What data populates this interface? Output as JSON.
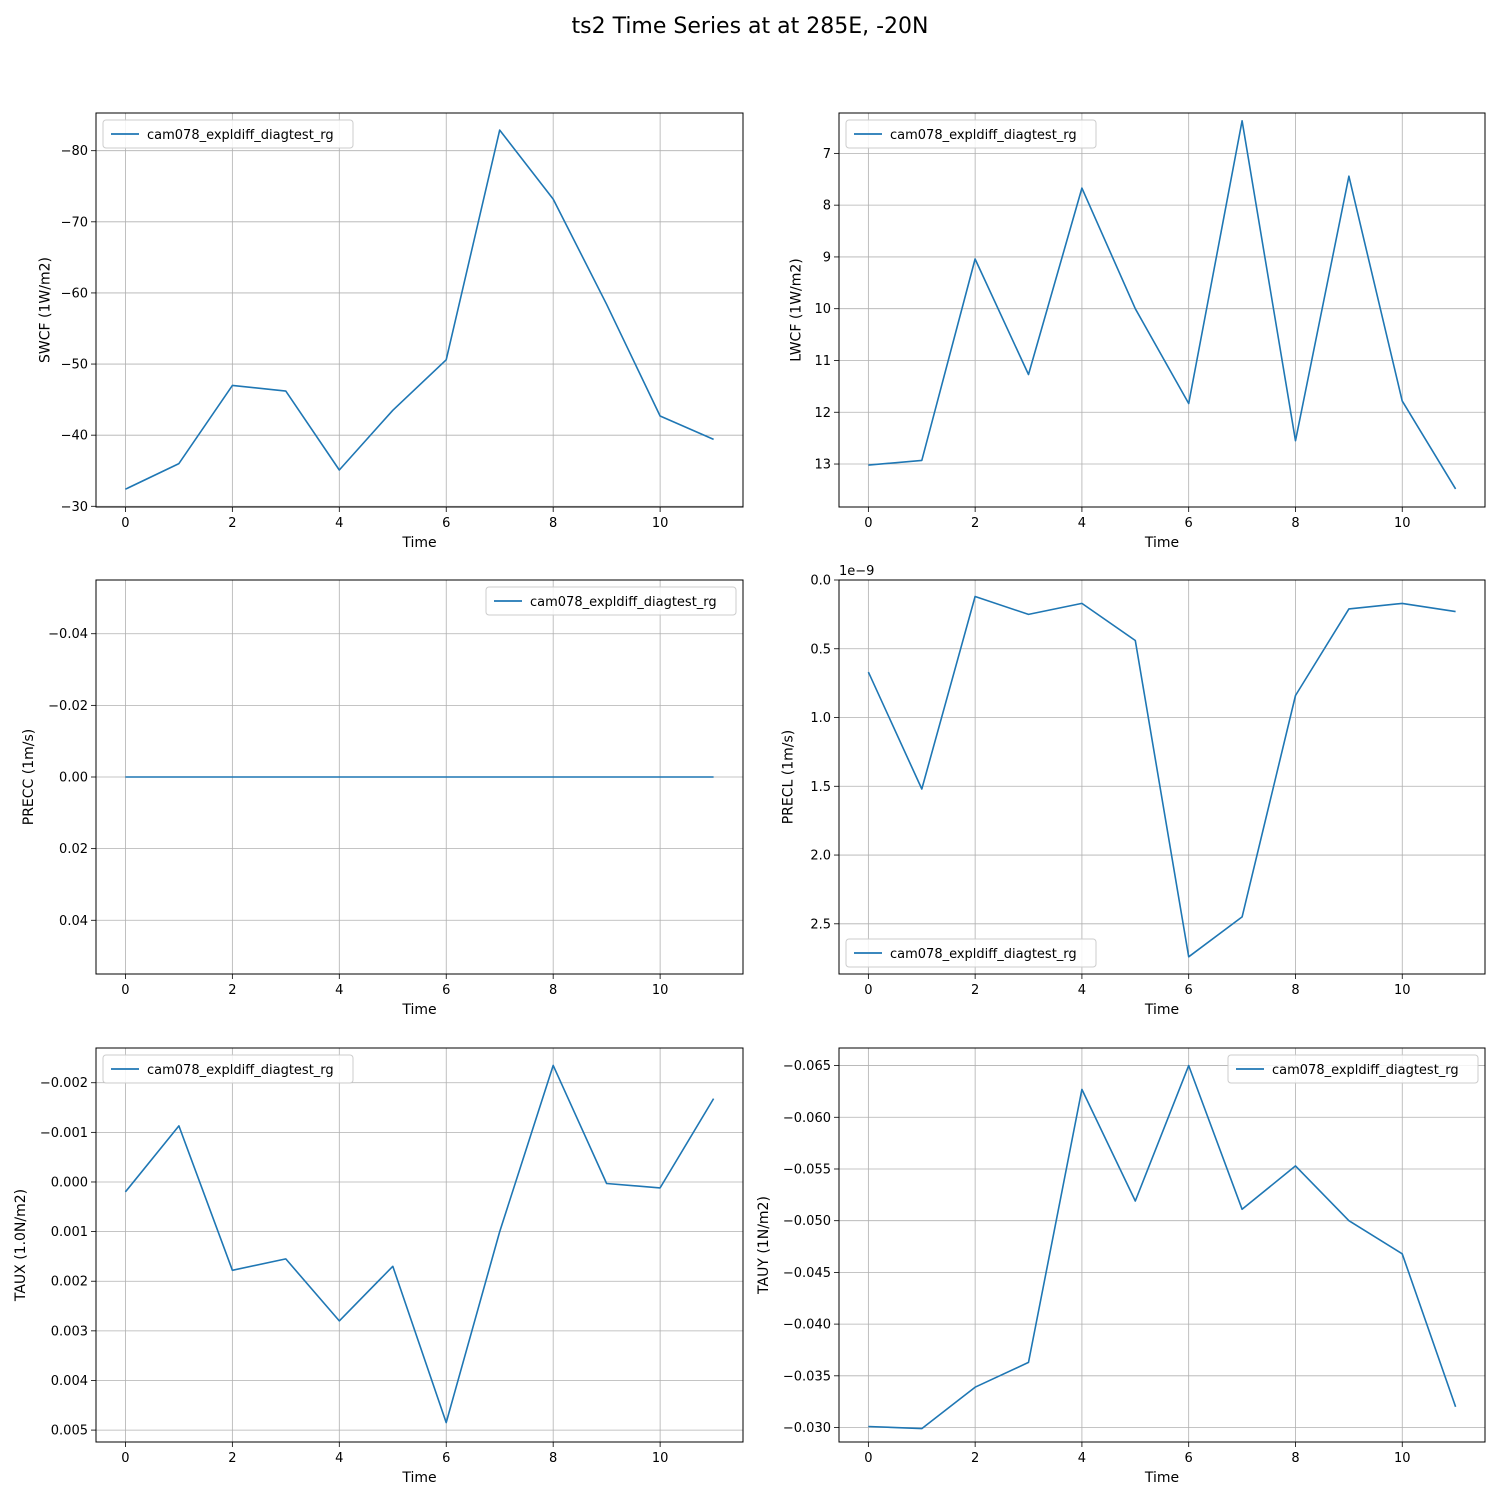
{
  "figure": {
    "title": "ts2 Time Series at at 285E, -20N"
  },
  "chart_data": [
    {
      "type": "line",
      "xlabel": "Time",
      "ylabel": "SWCF (1W/m2)",
      "y_inverted": true,
      "xlim": [
        -0.55,
        11.55
      ],
      "ylim": [
        -29.9,
        -85.3
      ],
      "xticks": [
        "0",
        "2",
        "4",
        "6",
        "8",
        "10"
      ],
      "yticks": [
        "−80",
        "−70",
        "−60",
        "−50",
        "−40",
        "−30"
      ],
      "ytick_values": [
        -80,
        -70,
        -60,
        -50,
        -40,
        -30
      ],
      "legend": "top-left",
      "grid": true,
      "series": [
        {
          "name": "cam078_expldiff_diagtest_rg",
          "color": "#1f77b4",
          "x": [
            0,
            1,
            2,
            3,
            4,
            5,
            6,
            7,
            8,
            9,
            10,
            11
          ],
          "y": [
            -32.4,
            -36.0,
            -47.0,
            -46.2,
            -35.1,
            -43.5,
            -50.6,
            -82.9,
            -73.2,
            -58.4,
            -42.7,
            -39.4
          ]
        }
      ]
    },
    {
      "type": "line",
      "xlabel": "Time",
      "ylabel": "LWCF (1W/m2)",
      "y_inverted": true,
      "xlim": [
        -0.55,
        11.55
      ],
      "ylim": [
        13.83,
        6.22
      ],
      "xticks": [
        "0",
        "2",
        "4",
        "6",
        "8",
        "10"
      ],
      "yticks": [
        "7",
        "8",
        "9",
        "10",
        "11",
        "12",
        "13"
      ],
      "ytick_values": [
        7,
        8,
        9,
        10,
        11,
        12,
        13
      ],
      "legend": "top-left",
      "grid": true,
      "series": [
        {
          "name": "cam078_expldiff_diagtest_rg",
          "color": "#1f77b4",
          "x": [
            0,
            1,
            2,
            3,
            4,
            5,
            6,
            7,
            8,
            9,
            10,
            11
          ],
          "y": [
            13.02,
            12.93,
            9.04,
            11.27,
            7.67,
            10.0,
            11.83,
            6.37,
            12.55,
            7.44,
            11.78,
            13.48
          ]
        }
      ]
    },
    {
      "type": "line",
      "xlabel": "Time",
      "ylabel": "PRECC (1m/s)",
      "y_inverted": true,
      "xlim": [
        -0.55,
        11.55
      ],
      "ylim": [
        0.055,
        -0.055
      ],
      "xticks": [
        "0",
        "2",
        "4",
        "6",
        "8",
        "10"
      ],
      "yticks": [
        "−0.04",
        "−0.02",
        "0.00",
        "0.02",
        "0.04"
      ],
      "ytick_values": [
        -0.04,
        -0.02,
        0.0,
        0.02,
        0.04
      ],
      "legend": "top-right",
      "grid": true,
      "series": [
        {
          "name": "cam078_expldiff_diagtest_rg",
          "color": "#1f77b4",
          "x": [
            0,
            1,
            2,
            3,
            4,
            5,
            6,
            7,
            8,
            9,
            10,
            11
          ],
          "y": [
            0,
            0,
            0,
            0,
            0,
            0,
            0,
            0,
            0,
            0,
            0,
            0
          ]
        }
      ]
    },
    {
      "type": "line",
      "xlabel": "Time",
      "ylabel": "PRECL (1m/s)",
      "y_inverted": true,
      "offset_label": "1e−9",
      "xlim": [
        -0.55,
        11.55
      ],
      "ylim": [
        2.865,
        0.0
      ],
      "xticks": [
        "0",
        "2",
        "4",
        "6",
        "8",
        "10"
      ],
      "yticks": [
        "0.0",
        "0.5",
        "1.0",
        "1.5",
        "2.0",
        "2.5"
      ],
      "ytick_values": [
        0.0,
        0.5,
        1.0,
        1.5,
        2.0,
        2.5
      ],
      "legend": "bottom-left",
      "grid": true,
      "series": [
        {
          "name": "cam078_expldiff_diagtest_rg",
          "color": "#1f77b4",
          "x": [
            0,
            1,
            2,
            3,
            4,
            5,
            6,
            7,
            8,
            9,
            10,
            11
          ],
          "y": [
            0.67,
            1.52,
            0.12,
            0.25,
            0.17,
            0.44,
            2.74,
            2.45,
            0.84,
            0.21,
            0.17,
            0.23
          ]
        }
      ]
    },
    {
      "type": "line",
      "xlabel": "Time",
      "ylabel": "TAUX (1.0N/m2)",
      "y_inverted": true,
      "xlim": [
        -0.55,
        11.55
      ],
      "ylim": [
        0.00524,
        -0.0027
      ],
      "xticks": [
        "0",
        "2",
        "4",
        "6",
        "8",
        "10"
      ],
      "yticks": [
        "−0.002",
        "−0.001",
        "0.000",
        "0.001",
        "0.002",
        "0.003",
        "0.004",
        "0.005"
      ],
      "ytick_values": [
        -0.002,
        -0.001,
        0.0,
        0.001,
        0.002,
        0.003,
        0.004,
        0.005
      ],
      "legend": "top-left",
      "grid": true,
      "series": [
        {
          "name": "cam078_expldiff_diagtest_rg",
          "color": "#1f77b4",
          "x": [
            0,
            1,
            2,
            3,
            4,
            5,
            6,
            7,
            8,
            9,
            10,
            11
          ],
          "y": [
            0.0002,
            -0.00113,
            0.00178,
            0.00155,
            0.0028,
            0.0017,
            0.00485,
            0.001,
            -0.00235,
            3e-05,
            0.00012,
            -0.00168
          ]
        }
      ]
    },
    {
      "type": "line",
      "xlabel": "Time",
      "ylabel": "TAUY (1N/m2)",
      "y_inverted": true,
      "xlim": [
        -0.55,
        11.55
      ],
      "ylim": [
        -0.0286,
        -0.0667
      ],
      "xticks": [
        "0",
        "2",
        "4",
        "6",
        "8",
        "10"
      ],
      "yticks": [
        "−0.065",
        "−0.060",
        "−0.055",
        "−0.050",
        "−0.045",
        "−0.040",
        "−0.035",
        "−0.030"
      ],
      "ytick_values": [
        -0.065,
        -0.06,
        -0.055,
        -0.05,
        -0.045,
        -0.04,
        -0.035,
        -0.03
      ],
      "legend": "top-right",
      "grid": true,
      "series": [
        {
          "name": "cam078_expldiff_diagtest_rg",
          "color": "#1f77b4",
          "x": [
            0,
            1,
            2,
            3,
            4,
            5,
            6,
            7,
            8,
            9,
            10,
            11
          ],
          "y": [
            -0.0301,
            -0.0299,
            -0.0339,
            -0.0363,
            -0.0627,
            -0.0519,
            -0.065,
            -0.0511,
            -0.0553,
            -0.05,
            -0.0468,
            -0.032
          ]
        }
      ]
    }
  ]
}
